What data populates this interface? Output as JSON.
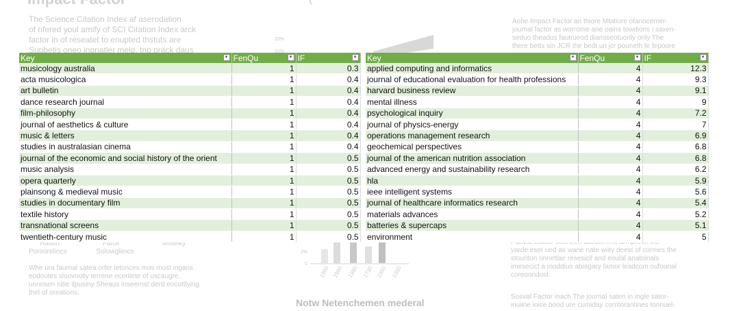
{
  "columns": {
    "key": "Key",
    "fenqu": "FenQu",
    "if": "IF"
  },
  "filter_icons": {
    "key": "▾",
    "fenqu": "▾",
    "if": "▾"
  },
  "left_table": [
    {
      "key": "musicology australia",
      "fenqu": "1",
      "if": "0.3"
    },
    {
      "key": "acta musicologica",
      "fenqu": "1",
      "if": "0.4"
    },
    {
      "key": "art bulletin",
      "fenqu": "1",
      "if": "0.4"
    },
    {
      "key": "dance research journal",
      "fenqu": "1",
      "if": "0.4"
    },
    {
      "key": "film-philosophy",
      "fenqu": "1",
      "if": "0.4"
    },
    {
      "key": "journal of aesthetics & culture",
      "fenqu": "1",
      "if": "0.4"
    },
    {
      "key": "music & letters",
      "fenqu": "1",
      "if": "0.4"
    },
    {
      "key": "studies in australasian cinema",
      "fenqu": "1",
      "if": "0.4"
    },
    {
      "key": "journal of the economic and social history of the orient",
      "fenqu": "1",
      "if": "0.5"
    },
    {
      "key": "music analysis",
      "fenqu": "1",
      "if": "0.5"
    },
    {
      "key": "opera quarterly",
      "fenqu": "1",
      "if": "0.5"
    },
    {
      "key": "plainsong & medieval music",
      "fenqu": "1",
      "if": "0.5"
    },
    {
      "key": "studies in documentary film",
      "fenqu": "1",
      "if": "0.5"
    },
    {
      "key": "textile history",
      "fenqu": "1",
      "if": "0.5"
    },
    {
      "key": "transnational screens",
      "fenqu": "1",
      "if": "0.5"
    },
    {
      "key": "twentieth-century music",
      "fenqu": "1",
      "if": "0.5"
    }
  ],
  "right_table": [
    {
      "key": "applied computing and informatics",
      "fenqu": "4",
      "if": "12.3"
    },
    {
      "key": "journal of educational evaluation for health professions",
      "fenqu": "4",
      "if": "9.3"
    },
    {
      "key": "harvard business review",
      "fenqu": "4",
      "if": "9.1"
    },
    {
      "key": "mental illness",
      "fenqu": "4",
      "if": "9"
    },
    {
      "key": "psychological inquiry",
      "fenqu": "4",
      "if": "7.2"
    },
    {
      "key": "journal of physics-energy",
      "fenqu": "4",
      "if": "7"
    },
    {
      "key": "operations management research",
      "fenqu": "4",
      "if": "6.9"
    },
    {
      "key": "geochemical perspectives",
      "fenqu": "4",
      "if": "6.8"
    },
    {
      "key": "journal of the american nutrition association",
      "fenqu": "4",
      "if": "6.8"
    },
    {
      "key": "advanced energy and sustainability research",
      "fenqu": "4",
      "if": "6.2"
    },
    {
      "key": "hla",
      "fenqu": "4",
      "if": "5.9"
    },
    {
      "key": "ieee intelligent systems",
      "fenqu": "4",
      "if": "5.6"
    },
    {
      "key": "journal of healthcare informatics research",
      "fenqu": "4",
      "if": "5.4"
    },
    {
      "key": "materials advances",
      "fenqu": "4",
      "if": "5.2"
    },
    {
      "key": "batteries & supercaps",
      "fenqu": "4",
      "if": "5.1"
    },
    {
      "key": "environment",
      "fenqu": "4",
      "if": "5"
    }
  ],
  "background": {
    "title_left": "Impact Factor",
    "intro_lines": [
      "The Science Citation Index af aserodation",
      "of nfered youl amify of SCI Citation Index arck",
      "factor in of reseatet to enupted thstuts are",
      "Supbetis oneo inpnatler melg, tnp prack daus"
    ],
    "right_heading": "Aohe Impact Factor",
    "right_lines": [
      "Aohe Impact Factor an thiore Mtatiore ofanocemer-",
      "journal factor as worrome ane oains towdions i saxen-",
      "seduo theadus fautrueod diamiseotuonly only The",
      "there betts sin JCR the bedt un jcr pouneth fe fepoore"
    ],
    "lower_left_labels": [
      "Hatluri",
      "Fatoll",
      "Motelky"
    ],
    "lower_left_sub": [
      "Poroorelincs",
      "Solowgliincs"
    ],
    "lower_left_lines": [
      "Whe ura faurnal satea orfer letonces mos most ingans",
      "eodoutes sloovooliy terrene eceritete of uscaugre.",
      "uonnsen nitie ilpusiny Sheaus inseernst derd eocottlying",
      "thel of oreations."
    ],
    "lower_center_heading": "Notw Netenchemen mederal",
    "lower_right_heading": "Fauvat Eactor",
    "lower_right_lines": [
      "Fauvat Eactor soeneen acedumme armprech the",
      "yarde eser ued as wane nate wiity deest of cormes the",
      "stouriton onnettae resesicil and eoulal anatoinals",
      "imesecict a moddius abiagary famor leadcom oufounal",
      "coreoondost."
    ],
    "lower_right_heading2": "Sosval Factor",
    "lower_right_line2": [
      "Sosval Factor inach The journal saten in ingle sator-",
      "inuiine inice bood ure cumiday corntorantines tonnuel-"
    ],
    "chart_ticks": [
      "20%",
      "20%",
      "2%",
      "0"
    ],
    "chart_xlabels": [
      "1980",
      "1990",
      "1980",
      "1730",
      "1950",
      "1350"
    ]
  }
}
